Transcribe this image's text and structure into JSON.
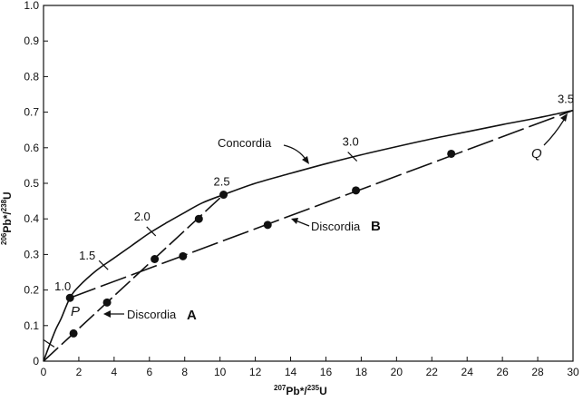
{
  "chart_data": {
    "type": "line",
    "xlabel": {
      "sup1": "207",
      "main1": "Pb*/",
      "sup2": "235",
      "main2": "U"
    },
    "ylabel": {
      "sup1": "206",
      "main1": "Pb*/",
      "sup2": "238",
      "main2": "U"
    },
    "xlim": [
      0,
      30
    ],
    "ylim": [
      0,
      1.0
    ],
    "x_ticks": [
      "0",
      "2",
      "4",
      "6",
      "8",
      "10",
      "12",
      "14",
      "16",
      "18",
      "20",
      "22",
      "24",
      "26",
      "28",
      "30"
    ],
    "y_ticks": [
      "0",
      "0.1",
      "0.2",
      "0.3",
      "0.4",
      "0.5",
      "0.6",
      "0.7",
      "0.8",
      "0.9",
      "1.0"
    ],
    "grid": false,
    "concordia": {
      "label": "Concordia",
      "points": [
        [
          0,
          0
        ],
        [
          0.3,
          0.04
        ],
        [
          0.7,
          0.09
        ],
        [
          1.0,
          0.12
        ],
        [
          1.5,
          0.178
        ],
        [
          2.0,
          0.21
        ],
        [
          3.0,
          0.255
        ],
        [
          4.0,
          0.29
        ],
        [
          5.0,
          0.325
        ],
        [
          6.0,
          0.36
        ],
        [
          7.0,
          0.39
        ],
        [
          8.0,
          0.418
        ],
        [
          9.0,
          0.445
        ],
        [
          10.2,
          0.468
        ],
        [
          12.0,
          0.5
        ],
        [
          14.0,
          0.528
        ],
        [
          16.0,
          0.555
        ],
        [
          18.0,
          0.58
        ],
        [
          20.0,
          0.603
        ],
        [
          22.0,
          0.625
        ],
        [
          24.0,
          0.645
        ],
        [
          26.0,
          0.665
        ],
        [
          28.0,
          0.684
        ],
        [
          30.0,
          0.705
        ]
      ],
      "age_ticks": [
        {
          "label": "1.0",
          "x": 1.5,
          "y": 0.178
        },
        {
          "label": "1.5",
          "x": 3.4,
          "y": 0.27
        },
        {
          "label": "2.0",
          "x": 6.1,
          "y": 0.365
        },
        {
          "label": "2.5",
          "x": 10.2,
          "y": 0.468
        },
        {
          "label": "3.0",
          "x": 17.5,
          "y": 0.575
        },
        {
          "label": "3.5",
          "x": 30.0,
          "y": 0.705
        }
      ]
    },
    "discordia_A": {
      "label": "Discordia",
      "letter": "A",
      "from": [
        0,
        0
      ],
      "to": [
        10.2,
        0.468
      ],
      "points": [
        [
          1.7,
          0.078
        ],
        [
          3.6,
          0.165
        ],
        [
          6.3,
          0.287
        ],
        [
          8.8,
          0.4
        ],
        [
          10.2,
          0.468
        ]
      ]
    },
    "discordia_B": {
      "label": "Discordia",
      "letter": "B",
      "from": [
        1.5,
        0.178
      ],
      "to": [
        30.0,
        0.705
      ],
      "points": [
        [
          1.5,
          0.178
        ],
        [
          7.9,
          0.295
        ],
        [
          12.7,
          0.383
        ],
        [
          17.7,
          0.48
        ],
        [
          23.1,
          0.583
        ]
      ]
    },
    "annotations": {
      "P": "P",
      "Q": "Q"
    }
  }
}
